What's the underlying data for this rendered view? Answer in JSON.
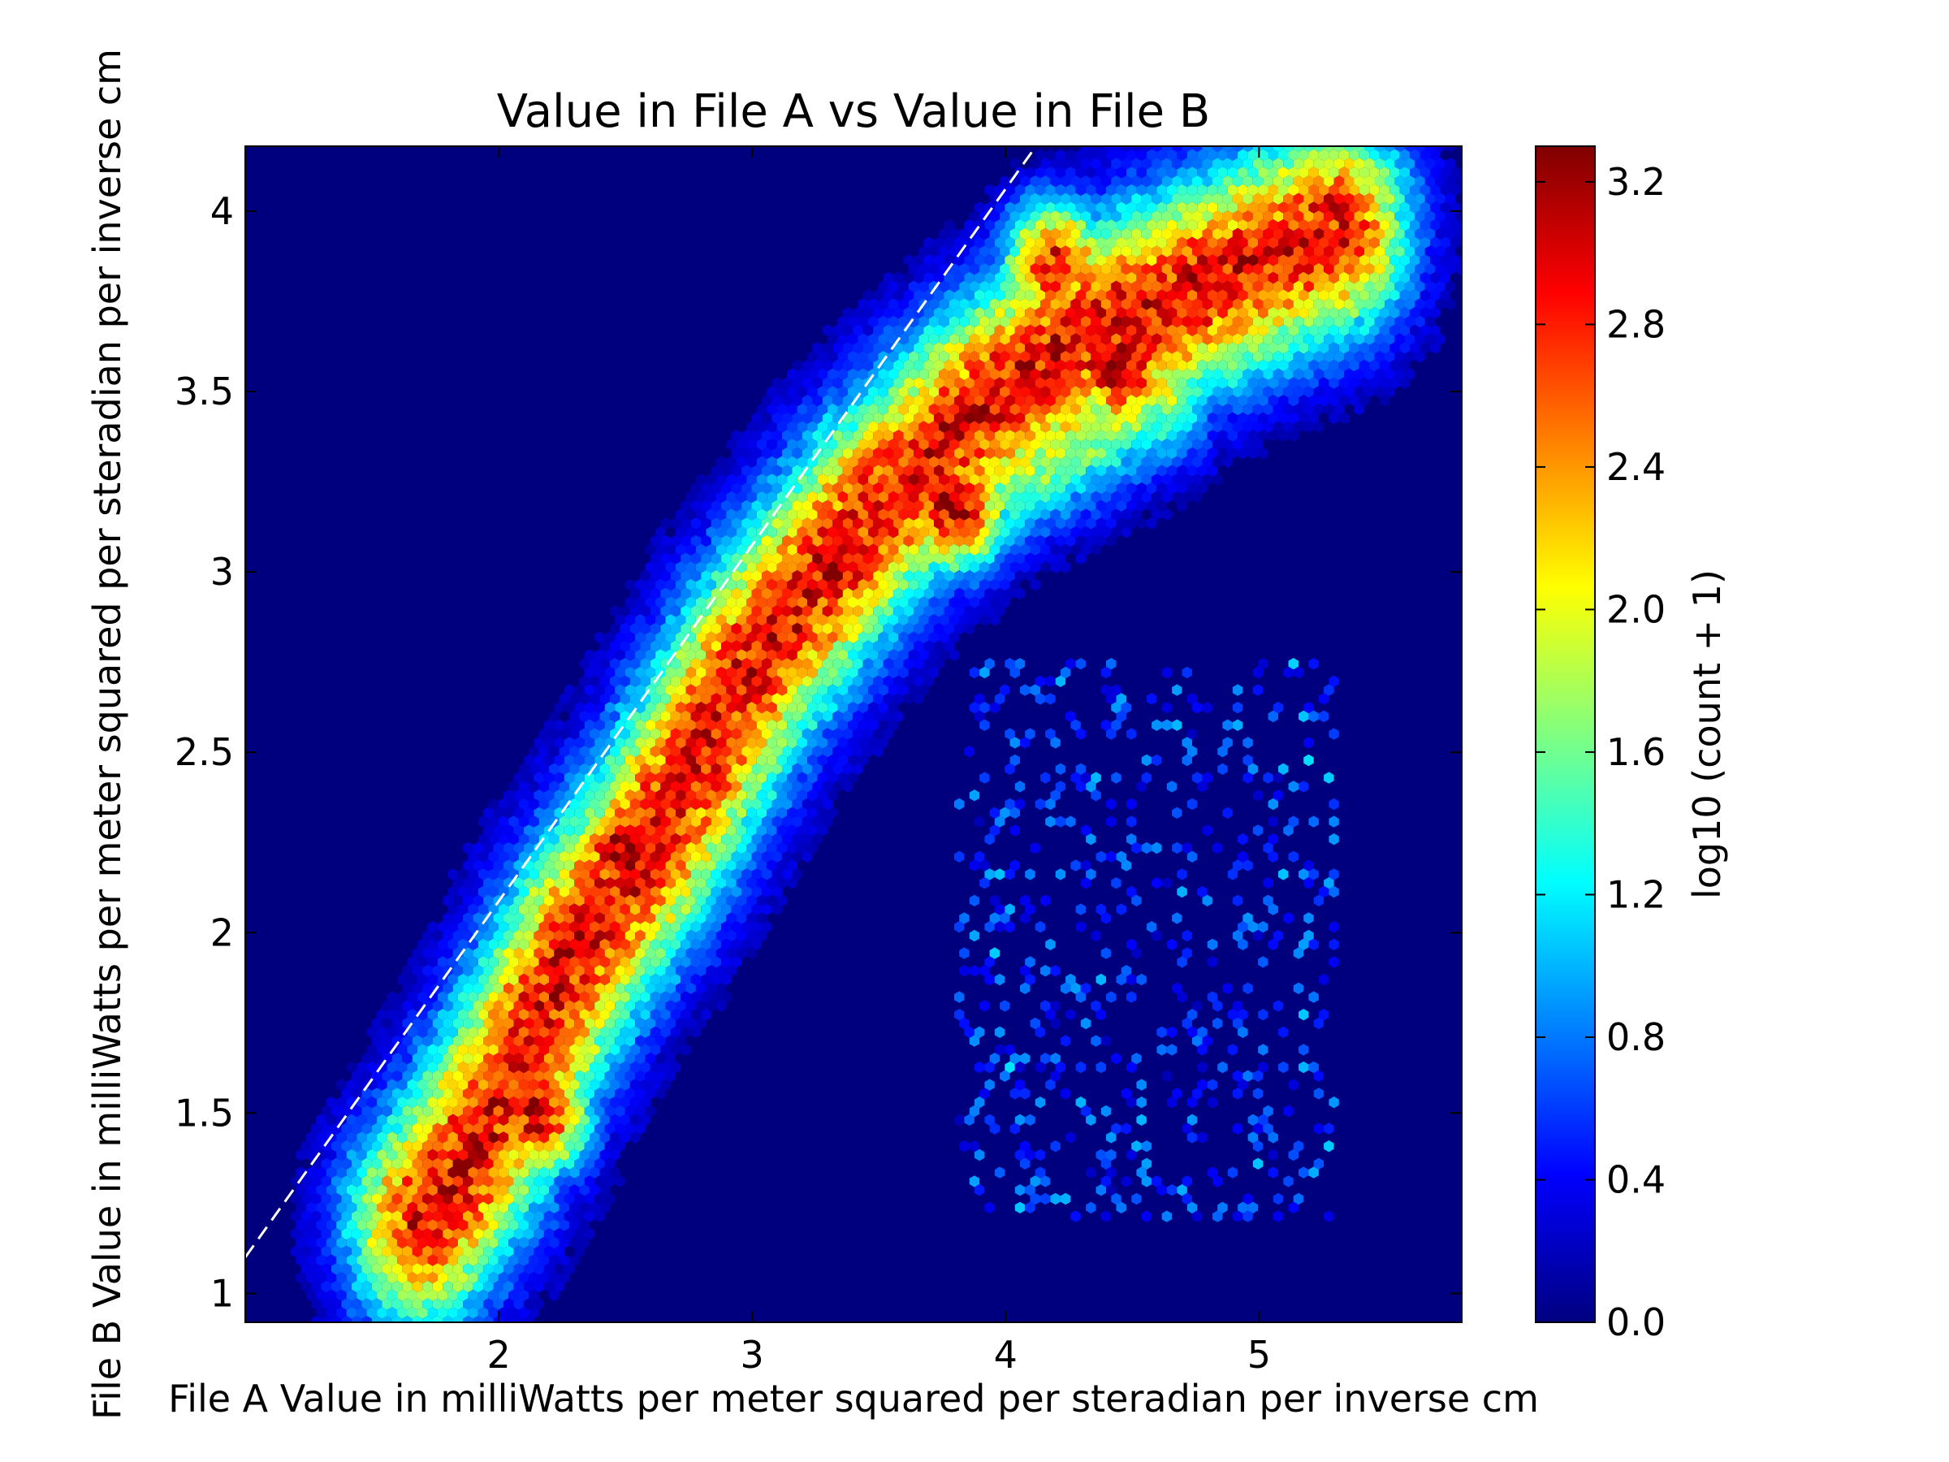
{
  "chart_data": {
    "type": "heatmap",
    "subtype": "hexbin",
    "title": "Value in File A vs Value in File B",
    "xlabel": "File A Value in milliWatts per meter squared per steradian per inverse cm",
    "ylabel": "File B Value in milliWatts per meter squared per steradian per inverse cm",
    "xlim": [
      1.0,
      5.8
    ],
    "ylim": [
      0.92,
      4.18
    ],
    "x_ticks": [
      2,
      3,
      4,
      5
    ],
    "x_tick_labels": [
      "2",
      "3",
      "4",
      "5"
    ],
    "y_ticks": [
      1,
      1.5,
      2,
      2.5,
      3,
      3.5,
      4
    ],
    "y_tick_labels": [
      "1",
      "1.5",
      "2",
      "2.5",
      "3",
      "3.5",
      "4"
    ],
    "grid": false,
    "colormap": "jet",
    "background_color": "#00007f",
    "colorbar": {
      "label": "log10 (count + 1)",
      "range": [
        0.0,
        3.3
      ],
      "ticks": [
        0.0,
        0.4,
        0.8,
        1.2,
        1.6,
        2.0,
        2.4,
        2.8,
        3.2
      ],
      "tick_labels": [
        "0.0",
        "0.4",
        "0.8",
        "1.2",
        "1.6",
        "2.0",
        "2.4",
        "2.8",
        "3.2"
      ]
    },
    "reference_line": {
      "style": "dashed",
      "color": "#ffffff",
      "points": [
        [
          1.0,
          1.1
        ],
        [
          4.12,
          4.18
        ]
      ]
    },
    "density_ridges": [
      {
        "x": [
          1.7,
          1.9,
          2.05,
          2.3,
          2.6,
          3.0,
          3.45,
          3.9,
          4.3,
          4.8,
          5.3
        ],
        "y": [
          1.2,
          1.4,
          1.6,
          1.95,
          2.25,
          2.75,
          3.15,
          3.45,
          3.65,
          3.8,
          3.95
        ],
        "peak": 2.9,
        "width": 0.38
      },
      {
        "x": [
          2.9,
          3.3,
          3.7,
          4.2,
          4.6
        ],
        "y": [
          2.75,
          3.0,
          3.2,
          3.4,
          3.55
        ],
        "peak": 2.0,
        "width": 0.3
      }
    ],
    "density_peaks": [
      {
        "x": 2.5,
        "y": 2.22,
        "value": 3.3
      },
      {
        "x": 2.15,
        "y": 1.5,
        "value": 3.05
      },
      {
        "x": 3.35,
        "y": 3.02,
        "value": 3.2
      },
      {
        "x": 3.8,
        "y": 3.18,
        "value": 3.15
      },
      {
        "x": 4.45,
        "y": 3.57,
        "value": 3.25
      },
      {
        "x": 4.2,
        "y": 3.85,
        "value": 2.9
      }
    ],
    "sparse_region": {
      "x": [
        3.8,
        5.3
      ],
      "y": [
        1.2,
        2.75
      ],
      "value": 0.4
    }
  }
}
